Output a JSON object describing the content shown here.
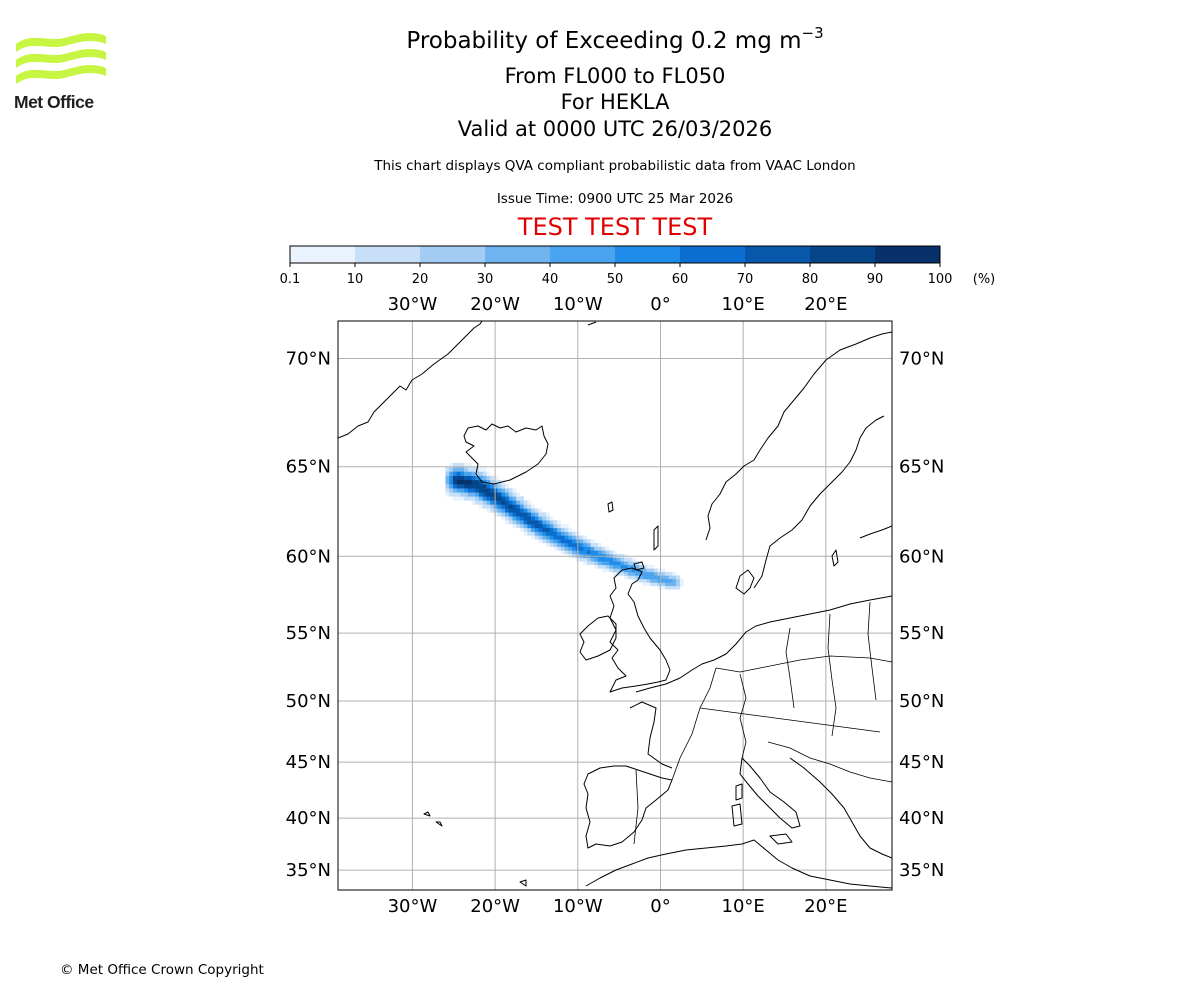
{
  "header": {
    "title_prefix": "Probability of Exceeding 0.2 mg m",
    "title_exponent": "−3",
    "flight_levels": "From FL000 to FL050",
    "volcano": "For HEKLA",
    "valid_time": "Valid at 0000 UTC 26/03/2026",
    "subtitle": "This chart displays QVA compliant probabilistic data from VAAC London",
    "issue_time": "Issue Time: 0900 UTC 25 Mar 2026",
    "test_banner": "TEST TEST TEST"
  },
  "logo": {
    "text": "Met Office",
    "color": "#c6f542"
  },
  "footer": {
    "copyright": "© Met Office Crown Copyright"
  },
  "colorbar": {
    "unit": "(%)",
    "ticks": [
      "0.1",
      "10",
      "20",
      "30",
      "40",
      "50",
      "60",
      "70",
      "80",
      "90",
      "100"
    ],
    "colors": [
      "#eaf3fd",
      "#c7e0f8",
      "#a3cdf4",
      "#6fb3ef",
      "#4aa3ef",
      "#1e8ce8",
      "#0a6fd0",
      "#0758ab",
      "#044689",
      "#08306b"
    ]
  },
  "map": {
    "lon_labels": [
      "30°W",
      "20°W",
      "10°W",
      "0°",
      "10°E",
      "20°E"
    ],
    "lat_labels": [
      "70°N",
      "65°N",
      "60°N",
      "55°N",
      "50°N",
      "45°N",
      "40°N",
      "35°N"
    ]
  },
  "chart_data": {
    "type": "heatmap",
    "title": "Probability of Exceeding 0.2 mg m−3",
    "variable": "probability of exceeding ash concentration (%)",
    "levels": [
      0.1,
      10,
      20,
      30,
      40,
      50,
      60,
      70,
      80,
      90,
      100
    ],
    "x_axis": {
      "label": "longitude",
      "range": [
        -39,
        28
      ],
      "ticks": [
        -30,
        -20,
        -10,
        0,
        10,
        20
      ]
    },
    "y_axis": {
      "label": "latitude",
      "range": [
        33,
        71.5
      ],
      "ticks": [
        70,
        65,
        60,
        55,
        50,
        45,
        40,
        35
      ]
    },
    "plume_axis": {
      "lon": [
        -24.5,
        -22,
        -19.5,
        -17,
        -14,
        -11,
        -8,
        -5,
        -2,
        1.5
      ],
      "lat": [
        64.3,
        64.0,
        63.3,
        62.5,
        61.6,
        60.8,
        60.1,
        59.5,
        58.9,
        58.4
      ]
    },
    "plume_core_probability_pct": 95,
    "plume_edge_probability_pct": 10
  }
}
